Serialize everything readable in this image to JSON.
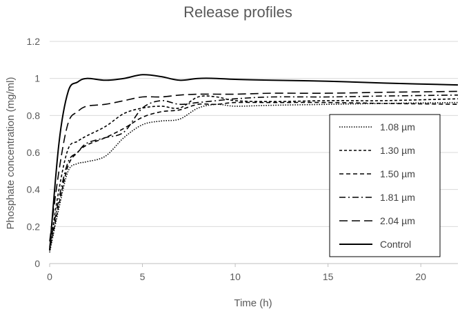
{
  "chart_data": {
    "type": "line",
    "title": "Release profiles",
    "xlabel": "Time (h)",
    "ylabel": "Phosphate concentration (mg/ml)",
    "xlim": [
      0,
      22
    ],
    "ylim": [
      0,
      1.2
    ],
    "xticks": [
      0,
      5,
      10,
      15,
      20
    ],
    "yticks": [
      0,
      0.2,
      0.4,
      0.6,
      0.8,
      1,
      1.2
    ],
    "grid": "horizontal",
    "legend": "right",
    "series": [
      {
        "name": "1.08 µm",
        "dash": "dotted",
        "x": [
          0,
          0.5,
          1,
          1.5,
          2,
          3,
          4,
          5,
          6,
          7,
          8,
          9,
          10,
          12,
          15,
          18,
          22
        ],
        "y": [
          0.06,
          0.3,
          0.5,
          0.54,
          0.55,
          0.58,
          0.68,
          0.75,
          0.77,
          0.78,
          0.84,
          0.86,
          0.85,
          0.855,
          0.86,
          0.865,
          0.87
        ]
      },
      {
        "name": "1.30 µm",
        "dash": "short-dash",
        "x": [
          0,
          0.5,
          1,
          1.5,
          2,
          3,
          4,
          5,
          6,
          7,
          8,
          9,
          10,
          12,
          15,
          18,
          22
        ],
        "y": [
          0.08,
          0.4,
          0.62,
          0.66,
          0.69,
          0.74,
          0.81,
          0.84,
          0.85,
          0.84,
          0.9,
          0.9,
          0.88,
          0.875,
          0.88,
          0.88,
          0.89
        ]
      },
      {
        "name": "1.50 µm",
        "dash": "dash",
        "x": [
          0,
          0.5,
          1,
          1.5,
          2,
          3,
          4,
          5,
          6,
          7,
          8,
          9,
          10,
          12,
          15,
          18,
          22
        ],
        "y": [
          0.07,
          0.32,
          0.53,
          0.6,
          0.64,
          0.68,
          0.73,
          0.79,
          0.82,
          0.83,
          0.86,
          0.86,
          0.87,
          0.87,
          0.87,
          0.865,
          0.86
        ]
      },
      {
        "name": "1.81 µm",
        "dash": "dash-dot",
        "x": [
          0,
          0.5,
          1,
          1.5,
          2,
          3,
          4,
          5,
          6,
          7,
          8,
          9,
          10,
          12,
          15,
          18,
          22
        ],
        "y": [
          0.09,
          0.35,
          0.55,
          0.6,
          0.65,
          0.68,
          0.71,
          0.84,
          0.88,
          0.86,
          0.87,
          0.88,
          0.89,
          0.9,
          0.9,
          0.905,
          0.91
        ]
      },
      {
        "name": "2.04 µm",
        "dash": "long-dash",
        "x": [
          0,
          0.5,
          1,
          1.5,
          2,
          3,
          4,
          5,
          6,
          7,
          8,
          9,
          10,
          12,
          15,
          18,
          22
        ],
        "y": [
          0.12,
          0.5,
          0.76,
          0.82,
          0.85,
          0.86,
          0.88,
          0.9,
          0.9,
          0.91,
          0.915,
          0.915,
          0.915,
          0.92,
          0.92,
          0.925,
          0.93
        ]
      },
      {
        "name": "Control",
        "dash": "solid",
        "x": [
          0,
          0.5,
          1,
          1.5,
          2,
          3,
          4,
          5,
          6,
          7,
          8,
          9,
          10,
          12,
          15,
          18,
          22
        ],
        "y": [
          0.07,
          0.65,
          0.93,
          0.98,
          1.0,
          0.99,
          1.0,
          1.02,
          1.01,
          0.99,
          1.0,
          1.0,
          0.995,
          0.99,
          0.985,
          0.975,
          0.965
        ]
      }
    ]
  },
  "colors": {
    "series": "#000000",
    "text": "#595959",
    "grid": "#d9d9d9"
  }
}
